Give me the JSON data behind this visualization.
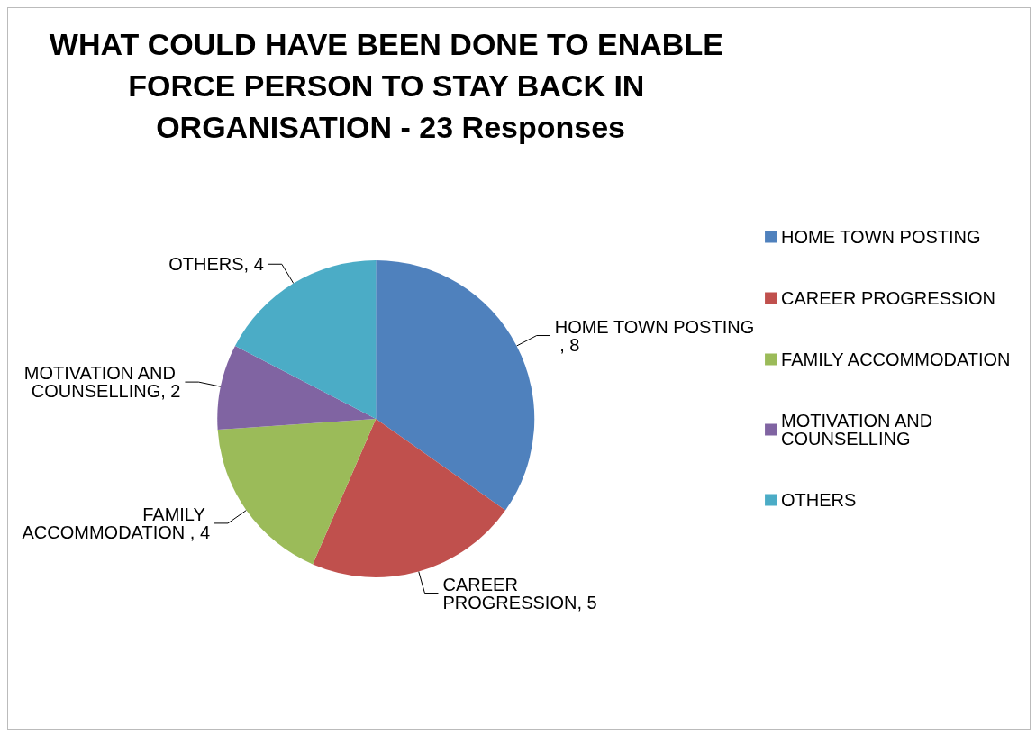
{
  "chart_data": {
    "type": "pie",
    "title": "WHAT COULD HAVE BEEN DONE TO ENABLE FORCE PERSON TO STAY BACK IN ORGANISATION - 23 Responses",
    "categories": [
      "HOME TOWN POSTING",
      "CAREER PROGRESSION",
      "FAMILY ACCOMMODATION",
      "MOTIVATION AND COUNSELLING",
      "OTHERS"
    ],
    "values": [
      8,
      5,
      4,
      2,
      4
    ],
    "colors": [
      "#4f81bd",
      "#c0504d",
      "#9bbb59",
      "#8064a2",
      "#4bacc6"
    ],
    "value_labels": [
      "HOME TOWN POSTING , 8",
      "CAREER PROGRESSION, 5",
      "FAMILY ACCOMMODATION , 4",
      "MOTIVATION AND COUNSELLING, 2",
      "OTHERS, 4"
    ],
    "legend": "right"
  }
}
